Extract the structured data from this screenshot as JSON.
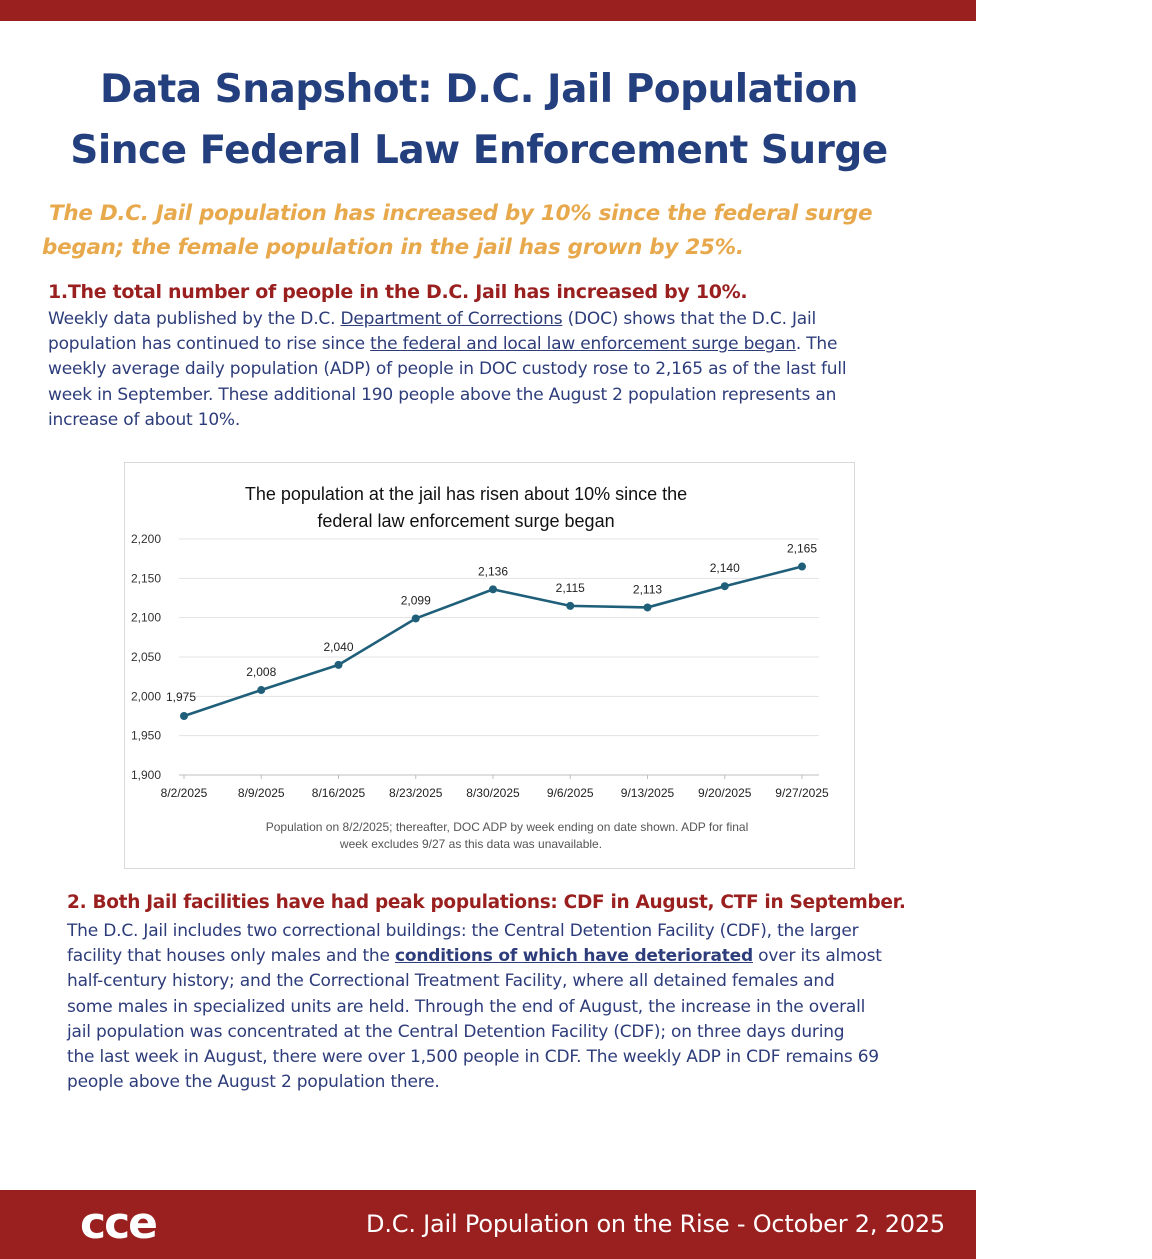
{
  "header": {
    "title_line1": "Data Snapshot: D.C. Jail Population",
    "title_line2": "Since Federal Law Enforcement Surge",
    "subtitle_line1": "The D.C. Jail population has increased by 10% since the federal surge",
    "subtitle_line2": "began; the female population in the jail has grown by 25%."
  },
  "section1": {
    "heading": "1.The total number of people in the D.C. Jail has increased by 10%.",
    "p_l1_a": "Weekly data published by the D.C. ",
    "p_l1_link": "Department of Corrections",
    "p_l1_b": " (DOC) shows that the D.C. Jail",
    "p_l2_a": "population has continued to rise since ",
    "p_l2_link": "the federal and local law enforcement surge began",
    "p_l2_b": ". The",
    "p_l3": "weekly average daily population (ADP) of people in DOC custody rose to 2,165 as of the last full",
    "p_l4": "week in September. These additional 190 people above the August 2 population represents an",
    "p_l5": "increase of about 10%."
  },
  "chart_data": {
    "type": "line",
    "title_line1": "The population at the jail has risen about 10% since the",
    "title_line2": "federal law enforcement surge began",
    "categories": [
      "8/2/2025",
      "8/9/2025",
      "8/16/2025",
      "8/23/2025",
      "8/30/2025",
      "9/6/2025",
      "9/13/2025",
      "9/20/2025",
      "9/27/2025"
    ],
    "values": [
      1975,
      2008,
      2040,
      2099,
      2136,
      2115,
      2113,
      2140,
      2165
    ],
    "value_labels": [
      "1,975",
      "2,008",
      "2,040",
      "2,099",
      "2,136",
      "2,115",
      "2,113",
      "2,140",
      "2,165"
    ],
    "y_ticks": [
      1900,
      1950,
      2000,
      2050,
      2100,
      2150,
      2200
    ],
    "y_tick_labels": [
      "1,900",
      "1,950",
      "2,000",
      "2,050",
      "2,100",
      "2,150",
      "2,200"
    ],
    "ylim": [
      1900,
      2200
    ],
    "grid": true,
    "line_color": "#1f5f7a",
    "note_line1": "Population on 8/2/2025; thereafter, DOC ADP by week ending on date shown. ADP for final",
    "note_line2": "week excludes 9/27 as this data was unavailable."
  },
  "section2": {
    "heading": "2. Both Jail facilities have had peak populations: CDF in August, CTF in September.",
    "p_l1": "The D.C. Jail includes two correctional buildings: the Central Detention Facility (CDF), the larger",
    "p_l2_a": "facility that houses only males and the ",
    "p_l2_link": "conditions of which have deteriorated",
    "p_l2_b": " over its almost",
    "p_l3": "half-century history; and the Correctional Treatment Facility, where all detained females and",
    "p_l4": "some males in specialized units are held. Through the end of August, the increase in the overall",
    "p_l5": "jail population was concentrated at the Central Detention Facility (CDF); on three days during",
    "p_l6": "the last week in August, there were over 1,500 people in CDF. The weekly ADP in CDF remains 69",
    "p_l7": "people above the August 2 population there."
  },
  "footer": {
    "logo": "cce",
    "text": "D.C. Jail Population on the Rise - October 2, 2025"
  },
  "colors": {
    "brand_red": "#9a1f1f",
    "title_blue": "#243f7e",
    "subtitle_orange": "#e8a94d",
    "body_blue": "#2d3c7a"
  }
}
